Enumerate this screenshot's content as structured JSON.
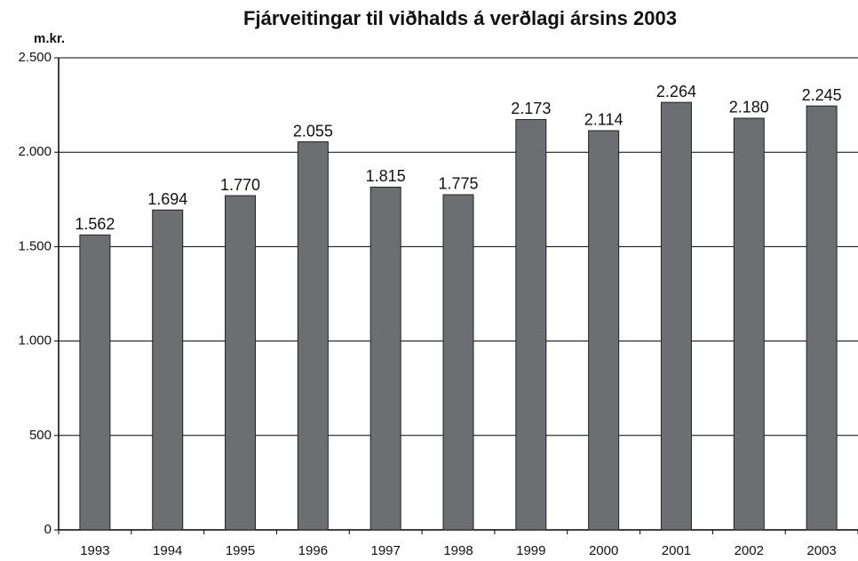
{
  "chart_data": {
    "type": "bar",
    "title": "Fjárveitingar til viðhalds á verðlagi ársins 2003",
    "y_label": "m.kr.",
    "categories": [
      "1993",
      "1994",
      "1995",
      "1996",
      "1997",
      "1998",
      "1999",
      "2000",
      "2001",
      "2002",
      "2003"
    ],
    "values": [
      1562,
      1694,
      1770,
      2055,
      1815,
      1775,
      2173,
      2114,
      2264,
      2180,
      2245
    ],
    "value_labels": [
      "1.562",
      "1.694",
      "1.770",
      "2.055",
      "1.815",
      "1.775",
      "2.173",
      "2.114",
      "2.264",
      "2.180",
      "2.245"
    ],
    "color": "#6d6e72",
    "ylim": [
      0,
      2500
    ],
    "yticks": [
      0,
      500,
      {
        "value": 1000,
        "label": "1.000"
      },
      {
        "value": 1500,
        "label": "1.500"
      },
      {
        "value": 2000,
        "label": "2.000"
      },
      {
        "value": 2500,
        "label": "2.500"
      }
    ],
    "grid": true
  }
}
